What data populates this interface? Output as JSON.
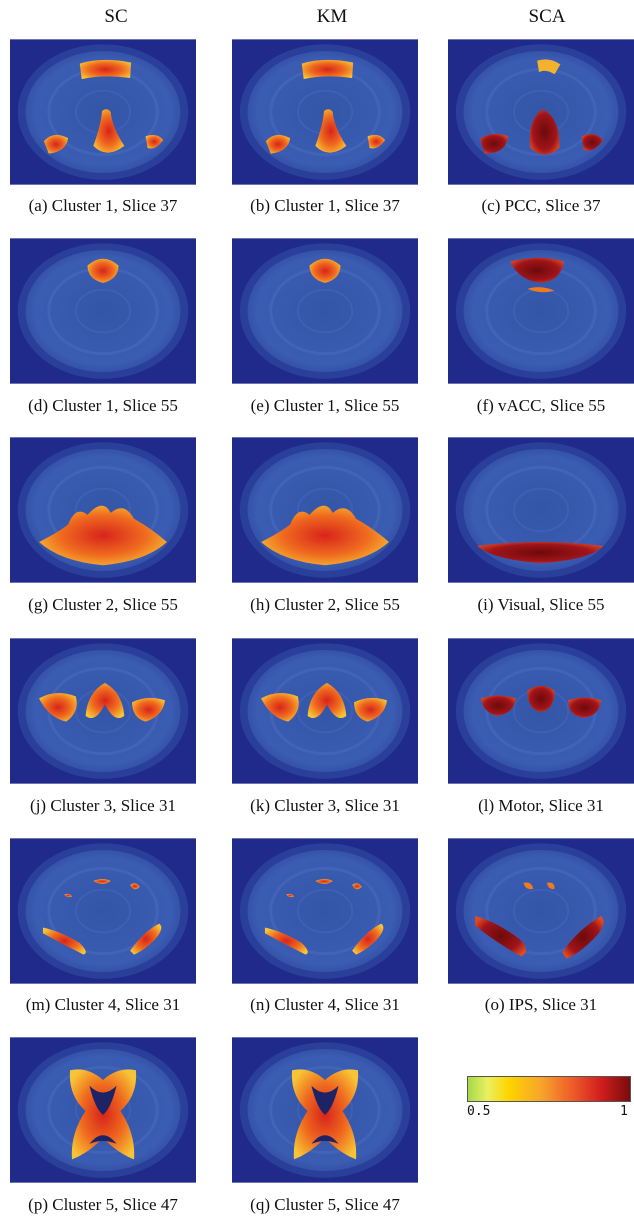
{
  "columns": [
    "SC",
    "KM",
    "SCA"
  ],
  "panels": [
    {
      "caption": "(a)  Cluster 1, Slice 37",
      "blobs": "dmn"
    },
    {
      "caption": "(b)  Cluster 1, Slice 37",
      "blobs": "dmn"
    },
    {
      "caption": "(c)  PCC, Slice 37",
      "blobs": "dmn_dark"
    },
    {
      "caption": "(d)  Cluster 1, Slice 55",
      "blobs": "frontal"
    },
    {
      "caption": "(e)  Cluster 1, Slice 55",
      "blobs": "frontal"
    },
    {
      "caption": "(f)  vACC, Slice 55",
      "blobs": "frontal_dark"
    },
    {
      "caption": "(g)  Cluster 2, Slice 55",
      "blobs": "visual"
    },
    {
      "caption": "(h)  Cluster 2, Slice 55",
      "blobs": "visual"
    },
    {
      "caption": "(i)  Visual, Slice 55",
      "blobs": "visual_thin"
    },
    {
      "caption": "(j)  Cluster 3, Slice 31",
      "blobs": "motor"
    },
    {
      "caption": "(k)  Cluster 3, Slice 31",
      "blobs": "motor"
    },
    {
      "caption": "(l)  Motor, Slice 31",
      "blobs": "motor_dark"
    },
    {
      "caption": "(m)  Cluster 4, Slice 31",
      "blobs": "ips"
    },
    {
      "caption": "(n)  Cluster 4, Slice 31",
      "blobs": "ips"
    },
    {
      "caption": "(o)  IPS, Slice 31",
      "blobs": "ips_dark"
    },
    {
      "caption": "(p)  Cluster 5, Slice 47",
      "blobs": "ventricle"
    },
    {
      "caption": "(q)  Cluster 5, Slice 47",
      "blobs": "ventricle"
    }
  ],
  "colorbar": {
    "min_label": "0.5",
    "max_label": "1"
  },
  "colors": {
    "background": "#1f2a8a",
    "brain": "#3d5fb3",
    "hot": "#f07a1e",
    "dark": "#8a0f10"
  }
}
